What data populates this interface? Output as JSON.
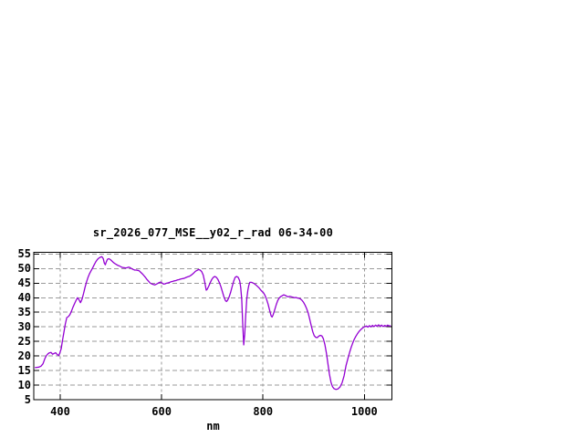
{
  "page": {
    "background": "#ffffff",
    "description": "gnuplot spectrum window"
  },
  "chart_data": {
    "type": "line",
    "title": "sr_2026_077_MSE__y02_r_rad 06-34-00",
    "xlabel": "nm",
    "ylabel": "",
    "xlim": [
      347.8,
      1054.3
    ],
    "ylim": [
      5,
      55.6
    ],
    "x_ticks": [
      400,
      600,
      800,
      1000
    ],
    "y_ticks": [
      5,
      10,
      15,
      20,
      25,
      30,
      35,
      40,
      45,
      50,
      55
    ],
    "grid": true,
    "legend": "none",
    "colors": {
      "line": "#9400d3",
      "grid": "#9a9a9a",
      "border": "#000000",
      "text": "#000000",
      "background": "#ffffff"
    },
    "series": [
      {
        "name": "sr_2026_077_MSE__y02_r_rad",
        "color": "#9400d3",
        "points": [
          [
            350,
            16.0
          ],
          [
            354,
            16.1
          ],
          [
            358,
            16.2
          ],
          [
            362,
            16.5
          ],
          [
            366,
            17.3
          ],
          [
            370,
            19.2
          ],
          [
            373,
            20.2
          ],
          [
            376,
            20.8
          ],
          [
            379,
            21.1
          ],
          [
            382,
            21.2
          ],
          [
            385,
            20.6
          ],
          [
            388,
            20.9
          ],
          [
            391,
            21.1
          ],
          [
            394,
            20.5
          ],
          [
            397,
            20.1
          ],
          [
            399,
            20.9
          ],
          [
            402,
            22.5
          ],
          [
            404,
            24.8
          ],
          [
            407,
            27.9
          ],
          [
            410,
            31.0
          ],
          [
            413,
            33.2
          ],
          [
            416,
            33.5
          ],
          [
            419,
            34.2
          ],
          [
            422,
            35.3
          ],
          [
            425,
            36.7
          ],
          [
            428,
            37.9
          ],
          [
            431,
            39.0
          ],
          [
            434,
            40.0
          ],
          [
            437,
            39.3
          ],
          [
            440,
            38.3
          ],
          [
            443,
            39.5
          ],
          [
            446,
            41.5
          ],
          [
            449,
            43.6
          ],
          [
            452,
            45.5
          ],
          [
            455,
            47.1
          ],
          [
            458,
            48.3
          ],
          [
            461,
            49.3
          ],
          [
            464,
            50.3
          ],
          [
            467,
            51.3
          ],
          [
            470,
            52.3
          ],
          [
            473,
            53.1
          ],
          [
            476,
            53.6
          ],
          [
            479,
            53.9
          ],
          [
            482,
            54.1
          ],
          [
            485,
            53.4
          ],
          [
            487,
            51.9
          ],
          [
            489,
            51.3
          ],
          [
            491,
            52.4
          ],
          [
            493,
            53.2
          ],
          [
            496,
            53.4
          ],
          [
            499,
            53.1
          ],
          [
            502,
            52.6
          ],
          [
            505,
            52.1
          ],
          [
            508,
            51.7
          ],
          [
            511,
            51.4
          ],
          [
            514,
            51.1
          ],
          [
            517,
            50.9
          ],
          [
            520,
            50.6
          ],
          [
            523,
            50.4
          ],
          [
            526,
            50.3
          ],
          [
            529,
            50.2
          ],
          [
            532,
            50.3
          ],
          [
            535,
            50.5
          ],
          [
            538,
            50.3
          ],
          [
            541,
            50.0
          ],
          [
            544,
            49.7
          ],
          [
            547,
            49.5
          ],
          [
            550,
            49.5
          ],
          [
            553,
            49.4
          ],
          [
            556,
            49.2
          ],
          [
            559,
            48.7
          ],
          [
            562,
            48.2
          ],
          [
            565,
            47.6
          ],
          [
            568,
            47.0
          ],
          [
            571,
            46.3
          ],
          [
            574,
            45.7
          ],
          [
            577,
            45.1
          ],
          [
            580,
            44.8
          ],
          [
            583,
            44.6
          ],
          [
            586,
            44.4
          ],
          [
            589,
            44.6
          ],
          [
            592,
            44.9
          ],
          [
            595,
            45.2
          ],
          [
            598,
            45.4
          ],
          [
            601,
            45.0
          ],
          [
            604,
            44.7
          ],
          [
            607,
            44.8
          ],
          [
            610,
            45.0
          ],
          [
            613,
            45.1
          ],
          [
            616,
            45.3
          ],
          [
            619,
            45.5
          ],
          [
            622,
            45.6
          ],
          [
            625,
            45.8
          ],
          [
            628,
            45.9
          ],
          [
            631,
            46.1
          ],
          [
            634,
            46.2
          ],
          [
            637,
            46.4
          ],
          [
            640,
            46.5
          ],
          [
            643,
            46.6
          ],
          [
            646,
            46.8
          ],
          [
            649,
            47.0
          ],
          [
            652,
            47.2
          ],
          [
            655,
            47.4
          ],
          [
            658,
            47.7
          ],
          [
            661,
            48.1
          ],
          [
            664,
            48.6
          ],
          [
            667,
            49.1
          ],
          [
            670,
            49.4
          ],
          [
            673,
            49.7
          ],
          [
            676,
            49.5
          ],
          [
            679,
            49.0
          ],
          [
            682,
            47.8
          ],
          [
            685,
            45.5
          ],
          [
            688,
            42.6
          ],
          [
            690,
            42.9
          ],
          [
            693,
            44.0
          ],
          [
            696,
            45.2
          ],
          [
            699,
            46.3
          ],
          [
            702,
            47.0
          ],
          [
            705,
            47.3
          ],
          [
            708,
            47.0
          ],
          [
            711,
            46.3
          ],
          [
            714,
            45.2
          ],
          [
            717,
            43.8
          ],
          [
            720,
            42.0
          ],
          [
            723,
            40.3
          ],
          [
            726,
            39.0
          ],
          [
            728,
            38.7
          ],
          [
            730,
            39.1
          ],
          [
            733,
            40.2
          ],
          [
            736,
            41.8
          ],
          [
            739,
            43.7
          ],
          [
            742,
            45.6
          ],
          [
            745,
            47.0
          ],
          [
            748,
            47.3
          ],
          [
            751,
            47.0
          ],
          [
            754,
            45.8
          ],
          [
            756,
            43.5
          ],
          [
            758,
            39.5
          ],
          [
            760,
            31.0
          ],
          [
            762,
            23.8
          ],
          [
            764,
            27.5
          ],
          [
            766,
            34.0
          ],
          [
            768,
            39.5
          ],
          [
            770,
            42.5
          ],
          [
            772,
            44.3
          ],
          [
            774,
            45.3
          ],
          [
            777,
            45.3
          ],
          [
            780,
            45.1
          ],
          [
            783,
            44.8
          ],
          [
            786,
            44.4
          ],
          [
            789,
            43.9
          ],
          [
            792,
            43.4
          ],
          [
            795,
            42.8
          ],
          [
            798,
            42.2
          ],
          [
            801,
            41.7
          ],
          [
            804,
            40.8
          ],
          [
            807,
            39.5
          ],
          [
            810,
            37.8
          ],
          [
            813,
            35.8
          ],
          [
            816,
            33.8
          ],
          [
            818,
            33.4
          ],
          [
            820,
            34.1
          ],
          [
            823,
            35.8
          ],
          [
            826,
            37.6
          ],
          [
            829,
            39.0
          ],
          [
            832,
            39.9
          ],
          [
            835,
            40.4
          ],
          [
            838,
            40.7
          ],
          [
            841,
            41.0
          ],
          [
            844,
            40.8
          ],
          [
            847,
            40.5
          ],
          [
            850,
            40.3
          ],
          [
            853,
            40.5
          ],
          [
            856,
            40.3
          ],
          [
            859,
            40.2
          ],
          [
            862,
            40.0
          ],
          [
            865,
            40.1
          ],
          [
            868,
            39.9
          ],
          [
            871,
            39.8
          ],
          [
            874,
            39.6
          ],
          [
            877,
            39.1
          ],
          [
            880,
            38.4
          ],
          [
            883,
            37.5
          ],
          [
            886,
            36.3
          ],
          [
            889,
            34.8
          ],
          [
            892,
            32.8
          ],
          [
            895,
            30.5
          ],
          [
            898,
            28.4
          ],
          [
            901,
            27.0
          ],
          [
            904,
            26.4
          ],
          [
            907,
            26.3
          ],
          [
            910,
            26.8
          ],
          [
            913,
            27.1
          ],
          [
            916,
            26.9
          ],
          [
            919,
            26.0
          ],
          [
            922,
            24.0
          ],
          [
            925,
            21.0
          ],
          [
            928,
            17.5
          ],
          [
            931,
            13.8
          ],
          [
            934,
            11.0
          ],
          [
            937,
            9.5
          ],
          [
            940,
            8.8
          ],
          [
            944,
            8.5
          ],
          [
            948,
            8.7
          ],
          [
            952,
            9.4
          ],
          [
            956,
            10.8
          ],
          [
            960,
            13.2
          ],
          [
            964,
            16.8
          ],
          [
            968,
            19.5
          ],
          [
            971,
            21.3
          ],
          [
            974,
            23.0
          ],
          [
            977,
            24.5
          ],
          [
            980,
            25.7
          ],
          [
            983,
            26.7
          ],
          [
            986,
            27.6
          ],
          [
            989,
            28.3
          ],
          [
            992,
            28.9
          ],
          [
            995,
            29.4
          ],
          [
            998,
            29.8
          ],
          [
            1001,
            30.1
          ],
          [
            1004,
            30.3
          ],
          [
            1007,
            29.9
          ],
          [
            1010,
            30.4
          ],
          [
            1013,
            30.0
          ],
          [
            1016,
            30.5
          ],
          [
            1019,
            30.1
          ],
          [
            1022,
            30.6
          ],
          [
            1025,
            30.2
          ],
          [
            1028,
            30.7
          ],
          [
            1031,
            30.2
          ],
          [
            1034,
            30.6
          ],
          [
            1037,
            30.1
          ],
          [
            1040,
            30.5
          ],
          [
            1043,
            30.2
          ],
          [
            1046,
            30.6
          ],
          [
            1049,
            30.3
          ],
          [
            1052,
            30.4
          ]
        ]
      }
    ]
  }
}
